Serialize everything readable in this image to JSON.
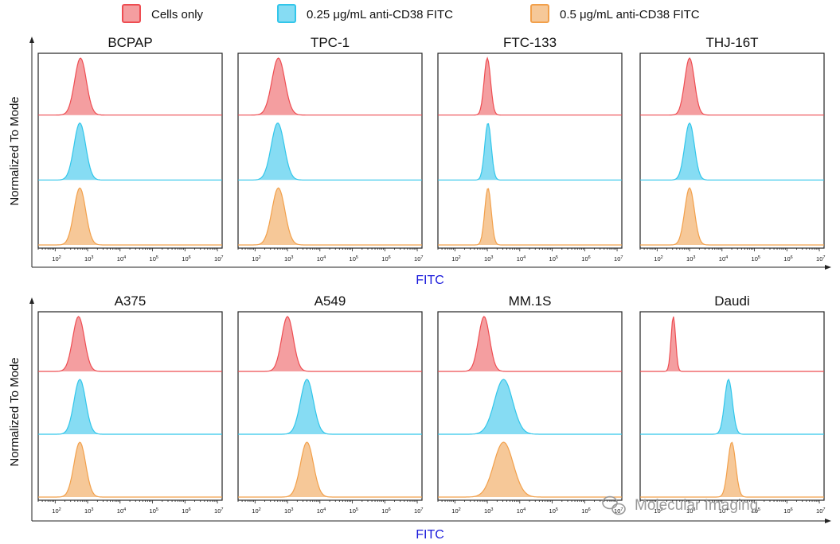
{
  "chart_data": {
    "type": "area",
    "subtype": "flow-cytometry-histogram-stack",
    "legend": [
      {
        "label": "Cells only",
        "color": "#ee4d52",
        "fill": "#f49ea0"
      },
      {
        "label": "0.25 μg/mL anti-CD38 FITC",
        "color": "#32c6ea",
        "fill": "#86dcf3"
      },
      {
        "label": "0.5 μg/mL anti-CD38 FITC",
        "color": "#f2a04b",
        "fill": "#f6c898"
      }
    ],
    "xlabel": "FITC",
    "ylabel": "Normalized To Mode",
    "xscale": "log",
    "xlim": [
      30,
      14000000
    ],
    "xtick_exponents": [
      2,
      3,
      4,
      5,
      6,
      7
    ],
    "tick_base": "10",
    "panels": [
      {
        "title": "BCPAP",
        "peaks": [
          {
            "center": 2.78,
            "width": 0.18
          },
          {
            "center": 2.76,
            "width": 0.18
          },
          {
            "center": 2.76,
            "width": 0.18
          }
        ]
      },
      {
        "title": "TPC-1",
        "peaks": [
          {
            "center": 2.72,
            "width": 0.2
          },
          {
            "center": 2.7,
            "width": 0.2
          },
          {
            "center": 2.72,
            "width": 0.2
          }
        ]
      },
      {
        "title": "FTC-133",
        "peaks": [
          {
            "center": 3.0,
            "width": 0.1
          },
          {
            "center": 3.02,
            "width": 0.1
          },
          {
            "center": 3.02,
            "width": 0.1
          }
        ]
      },
      {
        "title": "THJ-16T",
        "peaks": [
          {
            "center": 3.0,
            "width": 0.15
          },
          {
            "center": 3.0,
            "width": 0.15
          },
          {
            "center": 3.0,
            "width": 0.15
          }
        ]
      },
      {
        "title": "A375",
        "peaks": [
          {
            "center": 2.72,
            "width": 0.18
          },
          {
            "center": 2.76,
            "width": 0.18
          },
          {
            "center": 2.76,
            "width": 0.18
          }
        ]
      },
      {
        "title": "A549",
        "peaks": [
          {
            "center": 3.0,
            "width": 0.18
          },
          {
            "center": 3.6,
            "width": 0.2
          },
          {
            "center": 3.6,
            "width": 0.2
          }
        ]
      },
      {
        "title": "MM.1S",
        "peaks": [
          {
            "center": 2.9,
            "width": 0.17
          },
          {
            "center": 3.5,
            "width": 0.28
          },
          {
            "center": 3.5,
            "width": 0.3
          }
        ]
      },
      {
        "title": "Daudi",
        "peaks": [
          {
            "center": 2.5,
            "width": 0.07
          },
          {
            "center": 4.2,
            "width": 0.12
          },
          {
            "center": 4.3,
            "width": 0.12
          }
        ]
      }
    ]
  },
  "watermark": "Molecular Imaging"
}
